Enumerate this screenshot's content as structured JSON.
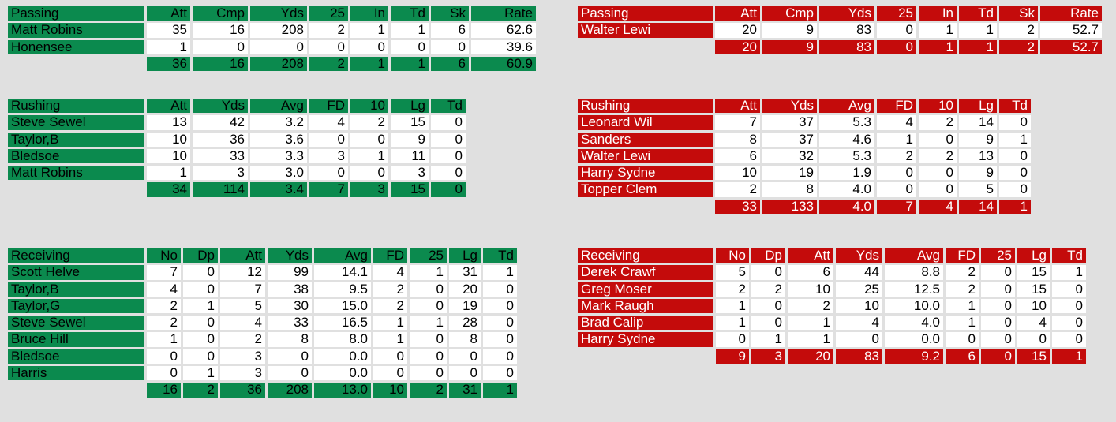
{
  "home": {
    "passing": {
      "headers": [
        "Passing",
        "Att",
        "Cmp",
        "Yds",
        "25",
        "In",
        "Td",
        "Sk",
        "Rate"
      ],
      "rows": [
        [
          "Matt Robins",
          "35",
          "16",
          "208",
          "2",
          "1",
          "1",
          "6",
          "62.6"
        ],
        [
          "Honensee",
          "1",
          "0",
          "0",
          "0",
          "0",
          "0",
          "0",
          "39.6"
        ]
      ],
      "totals": [
        "36",
        "16",
        "208",
        "2",
        "1",
        "1",
        "6",
        "60.9"
      ]
    },
    "rushing": {
      "headers": [
        "Rushing",
        "Att",
        "Yds",
        "Avg",
        "FD",
        "10",
        "Lg",
        "Td"
      ],
      "rows": [
        [
          "Steve Sewel",
          "13",
          "42",
          "3.2",
          "4",
          "2",
          "15",
          "0"
        ],
        [
          "Taylor,B",
          "10",
          "36",
          "3.6",
          "0",
          "0",
          "9",
          "0"
        ],
        [
          "Bledsoe",
          "10",
          "33",
          "3.3",
          "3",
          "1",
          "11",
          "0"
        ],
        [
          "Matt Robins",
          "1",
          "3",
          "3.0",
          "0",
          "0",
          "3",
          "0"
        ]
      ],
      "totals": [
        "34",
        "114",
        "3.4",
        "7",
        "3",
        "15",
        "0"
      ]
    },
    "receiving": {
      "headers": [
        "Receiving",
        "No",
        "Dp",
        "Att",
        "Yds",
        "Avg",
        "FD",
        "25",
        "Lg",
        "Td"
      ],
      "rows": [
        [
          "Scott Helve",
          "7",
          "0",
          "12",
          "99",
          "14.1",
          "4",
          "1",
          "31",
          "1"
        ],
        [
          "Taylor,B",
          "4",
          "0",
          "7",
          "38",
          "9.5",
          "2",
          "0",
          "20",
          "0"
        ],
        [
          "Taylor,G",
          "2",
          "1",
          "5",
          "30",
          "15.0",
          "2",
          "0",
          "19",
          "0"
        ],
        [
          "Steve Sewel",
          "2",
          "0",
          "4",
          "33",
          "16.5",
          "1",
          "1",
          "28",
          "0"
        ],
        [
          "Bruce Hill",
          "1",
          "0",
          "2",
          "8",
          "8.0",
          "1",
          "0",
          "8",
          "0"
        ],
        [
          "Bledsoe",
          "0",
          "0",
          "3",
          "0",
          "0.0",
          "0",
          "0",
          "0",
          "0"
        ],
        [
          "Harris",
          "0",
          "1",
          "3",
          "0",
          "0.0",
          "0",
          "0",
          "0",
          "0"
        ]
      ],
      "totals": [
        "16",
        "2",
        "36",
        "208",
        "13.0",
        "10",
        "2",
        "31",
        "1"
      ]
    }
  },
  "away": {
    "passing": {
      "headers": [
        "Passing",
        "Att",
        "Cmp",
        "Yds",
        "25",
        "In",
        "Td",
        "Sk",
        "Rate"
      ],
      "rows": [
        [
          "Walter Lewi",
          "20",
          "9",
          "83",
          "0",
          "1",
          "1",
          "2",
          "52.7"
        ]
      ],
      "totals": [
        "20",
        "9",
        "83",
        "0",
        "1",
        "1",
        "2",
        "52.7"
      ]
    },
    "rushing": {
      "headers": [
        "Rushing",
        "Att",
        "Yds",
        "Avg",
        "FD",
        "10",
        "Lg",
        "Td"
      ],
      "rows": [
        [
          "Leonard Wil",
          "7",
          "37",
          "5.3",
          "4",
          "2",
          "14",
          "0"
        ],
        [
          "Sanders",
          "8",
          "37",
          "4.6",
          "1",
          "0",
          "9",
          "1"
        ],
        [
          "Walter Lewi",
          "6",
          "32",
          "5.3",
          "2",
          "2",
          "13",
          "0"
        ],
        [
          "Harry Sydne",
          "10",
          "19",
          "1.9",
          "0",
          "0",
          "9",
          "0"
        ],
        [
          "Topper Clem",
          "2",
          "8",
          "4.0",
          "0",
          "0",
          "5",
          "0"
        ]
      ],
      "totals": [
        "33",
        "133",
        "4.0",
        "7",
        "4",
        "14",
        "1"
      ]
    },
    "receiving": {
      "headers": [
        "Receiving",
        "No",
        "Dp",
        "Att",
        "Yds",
        "Avg",
        "FD",
        "25",
        "Lg",
        "Td"
      ],
      "rows": [
        [
          "Derek Crawf",
          "5",
          "0",
          "6",
          "44",
          "8.8",
          "2",
          "0",
          "15",
          "1"
        ],
        [
          "Greg Moser",
          "2",
          "2",
          "10",
          "25",
          "12.5",
          "2",
          "0",
          "15",
          "0"
        ],
        [
          "Mark Raugh",
          "1",
          "0",
          "2",
          "10",
          "10.0",
          "1",
          "0",
          "10",
          "0"
        ],
        [
          "Brad Calip",
          "1",
          "0",
          "1",
          "4",
          "4.0",
          "1",
          "0",
          "4",
          "0"
        ],
        [
          "Harry Sydne",
          "0",
          "1",
          "1",
          "0",
          "0.0",
          "0",
          "0",
          "0",
          "0"
        ]
      ],
      "totals": [
        "9",
        "3",
        "20",
        "83",
        "9.2",
        "6",
        "0",
        "15",
        "1"
      ]
    }
  },
  "colors": {
    "home": "#0b8a4e",
    "away": "#c40b0b",
    "background": "#e0e0e0"
  }
}
